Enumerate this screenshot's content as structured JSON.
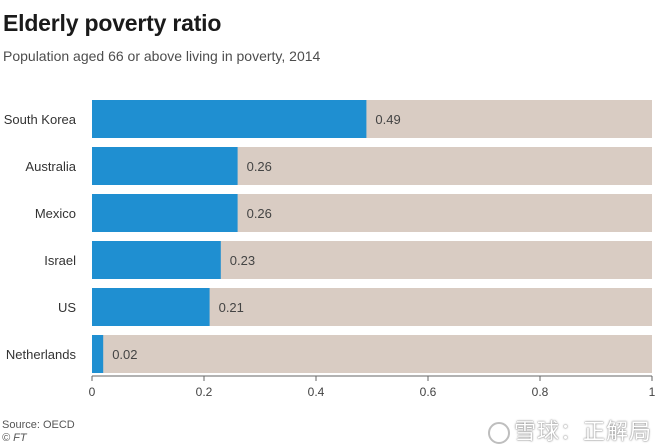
{
  "header": {
    "title": "Elderly poverty ratio",
    "subtitle": "Population aged 66 or above living in poverty, 2014"
  },
  "footer": {
    "source": "Source: OECD",
    "copyright": "© FT"
  },
  "watermark": {
    "text": "雪球：正解局"
  },
  "colors": {
    "bar": "#1f8fd1",
    "track": "#d9ccc3",
    "axis": "#666666",
    "text": "#333333"
  },
  "chart_data": {
    "type": "bar",
    "orientation": "horizontal",
    "title": "Elderly poverty ratio",
    "subtitle": "Population aged 66 or above living in poverty, 2014",
    "categories": [
      "South Korea",
      "Australia",
      "Mexico",
      "Israel",
      "US",
      "Netherlands"
    ],
    "values": [
      0.49,
      0.26,
      0.26,
      0.23,
      0.21,
      0.02
    ],
    "value_labels": [
      "0.49",
      "0.26",
      "0.26",
      "0.23",
      "0.21",
      "0.02"
    ],
    "xlim": [
      0,
      1
    ],
    "xticks": [
      0,
      0.2,
      0.4,
      0.6,
      0.8,
      1
    ],
    "xtick_labels": [
      "0",
      "0.2",
      "0.4",
      "0.6",
      "0.8",
      "1"
    ],
    "grid": false,
    "legend": "none"
  }
}
